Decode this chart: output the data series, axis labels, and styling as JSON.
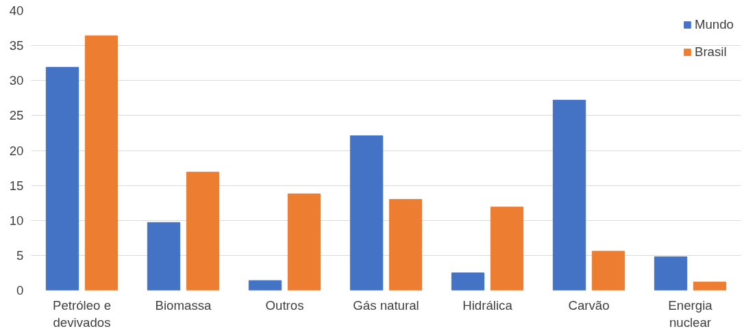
{
  "chart_data": {
    "type": "bar",
    "categories": [
      "Petróleo e\ndevivados",
      "Biomassa",
      "Outros",
      "Gás natural",
      "Hidrálica",
      "Carvão",
      "Energia\nnuclear"
    ],
    "series": [
      {
        "name": "Mundo",
        "color": "#4472c4",
        "values": [
          31.9,
          9.7,
          1.4,
          22.1,
          2.5,
          27.2,
          4.8
        ]
      },
      {
        "name": "Brasil",
        "color": "#ed7d31",
        "values": [
          36.4,
          16.9,
          13.8,
          13.0,
          11.9,
          5.6,
          1.2
        ]
      }
    ],
    "ylim": [
      0,
      40
    ],
    "yticks": [
      0,
      5,
      10,
      15,
      20,
      25,
      30,
      35,
      40
    ],
    "grid": "y",
    "legend": "top right"
  }
}
